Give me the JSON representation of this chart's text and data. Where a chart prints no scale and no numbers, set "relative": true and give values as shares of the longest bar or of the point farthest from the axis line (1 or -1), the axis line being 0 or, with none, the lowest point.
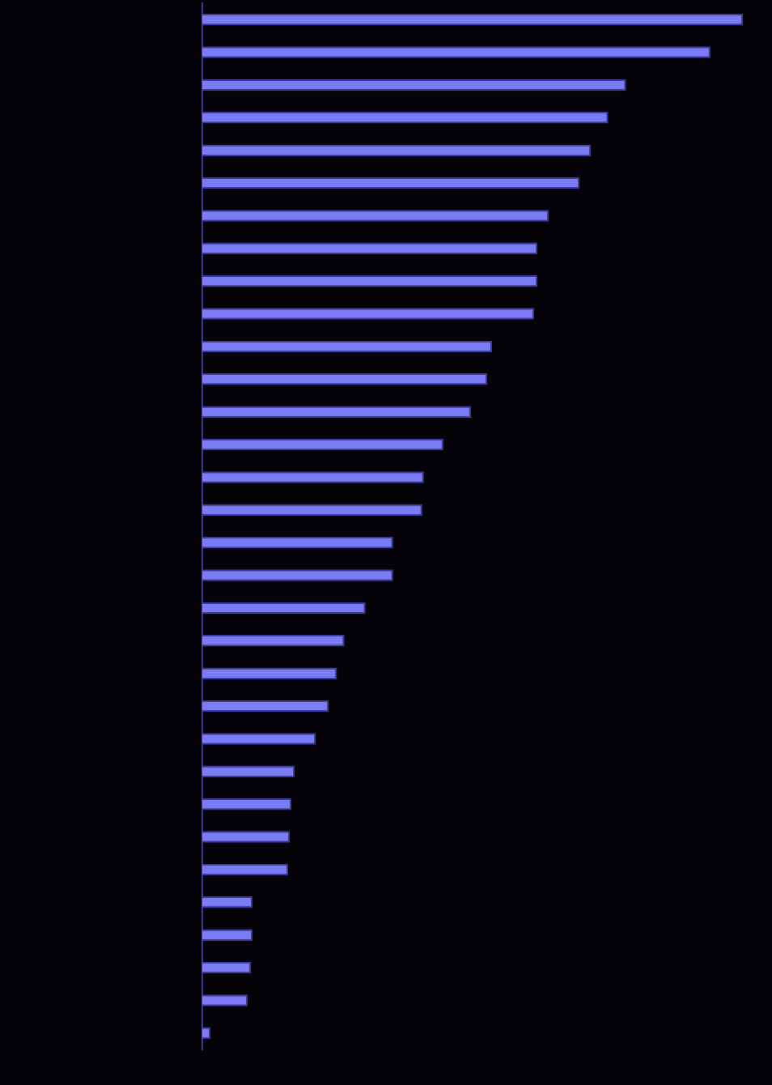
{
  "chart_data": {
    "type": "bar",
    "orientation": "horizontal",
    "relative": true,
    "categories": [
      null,
      null,
      null,
      null,
      null,
      null,
      null,
      null,
      null,
      null,
      null,
      null,
      null,
      null,
      null,
      null,
      null,
      null,
      null,
      null,
      null,
      null,
      null,
      null,
      null,
      null,
      null,
      null,
      null,
      null,
      null,
      null
    ],
    "values": [
      1,
      0.94,
      0.784,
      0.751,
      0.719,
      0.698,
      0.641,
      0.62,
      0.62,
      0.614,
      0.536,
      0.527,
      0.497,
      0.446,
      0.41,
      0.407,
      0.353,
      0.353,
      0.302,
      0.263,
      0.249,
      0.234,
      0.21,
      0.171,
      0.165,
      0.162,
      0.159,
      0.093,
      0.093,
      0.09,
      0.084,
      0.015
    ],
    "color": "#7b7bf5",
    "legend": false
  }
}
